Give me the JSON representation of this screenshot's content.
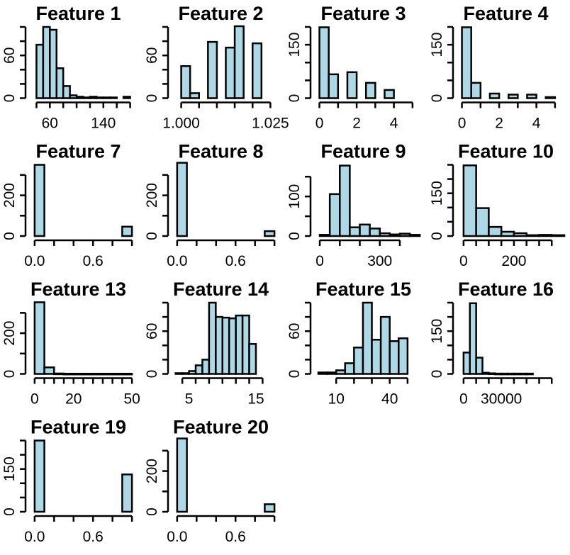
{
  "chart_data": [
    {
      "type": "bar",
      "title": "Feature 1",
      "x_ticks": [
        "60",
        "140"
      ],
      "x_tick_values": [
        60,
        140
      ],
      "y_ticks": [
        "0",
        "60"
      ],
      "y_tick_values": [
        0,
        60
      ],
      "xlim": [
        30,
        190
      ],
      "ylim": [
        0,
        100
      ],
      "x_tick_minor": [
        40,
        60,
        80,
        100,
        120,
        140,
        160,
        180
      ],
      "y_tick_minor": [
        0,
        20,
        40,
        60,
        80,
        100
      ],
      "bins": [
        [
          40,
          50,
          75
        ],
        [
          50,
          60,
          100
        ],
        [
          60,
          70,
          96
        ],
        [
          70,
          80,
          42
        ],
        [
          80,
          90,
          17
        ],
        [
          90,
          100,
          4
        ],
        [
          100,
          110,
          2
        ],
        [
          110,
          120,
          1
        ],
        [
          120,
          130,
          2
        ],
        [
          130,
          140,
          1
        ],
        [
          140,
          150,
          1
        ],
        [
          150,
          160,
          1
        ],
        [
          160,
          170,
          0
        ],
        [
          170,
          180,
          2
        ]
      ]
    },
    {
      "type": "bar",
      "title": "Feature 2",
      "x_ticks": [
        "1.000",
        "1.025"
      ],
      "x_tick_values": [
        1.0,
        1.025
      ],
      "y_ticks": [
        "0",
        "60"
      ],
      "y_tick_values": [
        0,
        60
      ],
      "xlim": [
        0.9975,
        1.0275
      ],
      "ylim": [
        0,
        100
      ],
      "x_tick_minor": [
        1.0,
        1.005,
        1.01,
        1.015,
        1.02,
        1.025
      ],
      "y_tick_minor": [
        0,
        20,
        40,
        60,
        80,
        100
      ],
      "bins": [
        [
          1.0,
          1.0025,
          45
        ],
        [
          1.0025,
          1.005,
          7
        ],
        [
          1.005,
          1.0075,
          0
        ],
        [
          1.0075,
          1.01,
          79
        ],
        [
          1.01,
          1.0125,
          0
        ],
        [
          1.0125,
          1.015,
          71
        ],
        [
          1.015,
          1.0175,
          101
        ],
        [
          1.0175,
          1.02,
          0
        ],
        [
          1.02,
          1.0225,
          77
        ]
      ]
    },
    {
      "type": "bar",
      "title": "Feature 3",
      "x_ticks": [
        "0",
        "2",
        "4"
      ],
      "x_tick_values": [
        0,
        2,
        4
      ],
      "y_ticks": [
        "0",
        "150"
      ],
      "y_tick_values": [
        0,
        150
      ],
      "xlim": [
        -0.25,
        5.5
      ],
      "ylim": [
        0,
        200
      ],
      "x_tick_minor": [
        0,
        1,
        2,
        3,
        4,
        5
      ],
      "y_tick_minor": [
        0,
        50,
        100,
        150,
        200
      ],
      "bins": [
        [
          0,
          0.5,
          199
        ],
        [
          0.5,
          1,
          67
        ],
        [
          1,
          1.5,
          0
        ],
        [
          1.5,
          2,
          73
        ],
        [
          2,
          2.5,
          0
        ],
        [
          2.5,
          3,
          43
        ],
        [
          3,
          3.5,
          0
        ],
        [
          3.5,
          4,
          23
        ]
      ]
    },
    {
      "type": "bar",
      "title": "Feature 4",
      "x_ticks": [
        "0",
        "2",
        "4"
      ],
      "x_tick_values": [
        0,
        2,
        4
      ],
      "y_ticks": [
        "0",
        "150"
      ],
      "y_tick_values": [
        0,
        150
      ],
      "xlim": [
        -0.25,
        5.5
      ],
      "ylim": [
        0,
        200
      ],
      "x_tick_minor": [
        0,
        1,
        2,
        3,
        4,
        5
      ],
      "y_tick_minor": [
        0,
        50,
        100,
        150,
        200
      ],
      "bins": [
        [
          0,
          0.5,
          199
        ],
        [
          0.5,
          1,
          43
        ],
        [
          1,
          1.5,
          0
        ],
        [
          1.5,
          2,
          13
        ],
        [
          2,
          2.5,
          0
        ],
        [
          2.5,
          3,
          10
        ],
        [
          3,
          3.5,
          0
        ],
        [
          3.5,
          4,
          10
        ],
        [
          4,
          4.5,
          0
        ],
        [
          4.5,
          5,
          3
        ]
      ]
    },
    {
      "type": "bar",
      "title": "Feature 7",
      "x_ticks": [
        "0.0",
        "0.6"
      ],
      "x_tick_values": [
        0.0,
        0.6
      ],
      "y_ticks": [
        "0",
        "200"
      ],
      "y_tick_values": [
        0,
        200
      ],
      "xlim": [
        -0.05,
        1.05
      ],
      "ylim": [
        0,
        350
      ],
      "x_tick_minor": [
        0.0,
        0.2,
        0.4,
        0.6,
        0.8,
        1.0
      ],
      "y_tick_minor": [
        0,
        100,
        200,
        300
      ],
      "bins": [
        [
          0.0,
          0.1,
          350
        ],
        [
          0.1,
          0.2,
          0
        ],
        [
          0.2,
          0.3,
          0
        ],
        [
          0.3,
          0.4,
          0
        ],
        [
          0.4,
          0.5,
          0
        ],
        [
          0.5,
          0.6,
          0
        ],
        [
          0.6,
          0.7,
          0
        ],
        [
          0.7,
          0.8,
          0
        ],
        [
          0.8,
          0.9,
          0
        ],
        [
          0.9,
          1.0,
          46
        ]
      ]
    },
    {
      "type": "bar",
      "title": "Feature 8",
      "x_ticks": [
        "0.0",
        "0.6"
      ],
      "x_tick_values": [
        0.0,
        0.6
      ],
      "y_ticks": [
        "0",
        "200"
      ],
      "y_tick_values": [
        0,
        200
      ],
      "xlim": [
        -0.05,
        1.05
      ],
      "ylim": [
        0,
        350
      ],
      "x_tick_minor": [
        0.0,
        0.2,
        0.4,
        0.6,
        0.8,
        1.0
      ],
      "y_tick_minor": [
        0,
        100,
        200,
        300
      ],
      "bins": [
        [
          0.0,
          0.1,
          360
        ],
        [
          0.1,
          0.2,
          0
        ],
        [
          0.2,
          0.3,
          0
        ],
        [
          0.3,
          0.4,
          0
        ],
        [
          0.4,
          0.5,
          0
        ],
        [
          0.5,
          0.6,
          0
        ],
        [
          0.6,
          0.7,
          0
        ],
        [
          0.7,
          0.8,
          0
        ],
        [
          0.8,
          0.9,
          0
        ],
        [
          0.9,
          1.0,
          24
        ]
      ]
    },
    {
      "type": "bar",
      "title": "Feature 9",
      "x_ticks": [
        "0",
        "300"
      ],
      "x_tick_values": [
        0,
        300
      ],
      "y_ticks": [
        "0",
        "100"
      ],
      "y_tick_values": [
        0,
        100
      ],
      "xlim": [
        -25,
        510
      ],
      "ylim": [
        0,
        180
      ],
      "x_tick_minor": [
        0,
        100,
        200,
        300,
        400
      ],
      "y_tick_minor": [
        0,
        50,
        100,
        150
      ],
      "bins": [
        [
          0,
          50,
          3
        ],
        [
          50,
          100,
          106
        ],
        [
          100,
          150,
          178
        ],
        [
          150,
          200,
          22
        ],
        [
          200,
          250,
          29
        ],
        [
          250,
          300,
          19
        ],
        [
          300,
          350,
          7
        ],
        [
          350,
          400,
          4
        ],
        [
          400,
          450,
          6
        ],
        [
          450,
          500,
          3
        ]
      ]
    },
    {
      "type": "bar",
      "title": "Feature 10",
      "x_ticks": [
        "0",
        "200"
      ],
      "x_tick_values": [
        0,
        200
      ],
      "y_ticks": [
        "0",
        "150"
      ],
      "y_tick_values": [
        0,
        150
      ],
      "xlim": [
        -25,
        400
      ],
      "ylim": [
        0,
        250
      ],
      "x_tick_minor": [
        0,
        50,
        100,
        150,
        200,
        250,
        300,
        350
      ],
      "y_tick_minor": [
        0,
        50,
        100,
        150,
        200,
        250
      ],
      "bins": [
        [
          0,
          50,
          248
        ],
        [
          50,
          100,
          98
        ],
        [
          100,
          150,
          32
        ],
        [
          150,
          200,
          15
        ],
        [
          200,
          250,
          10
        ],
        [
          250,
          300,
          3
        ],
        [
          300,
          350,
          4
        ],
        [
          350,
          400,
          3
        ]
      ]
    },
    {
      "type": "bar",
      "title": "Feature 13",
      "x_ticks": [
        "0",
        "20",
        "50"
      ],
      "x_tick_values": [
        0,
        20,
        50
      ],
      "y_ticks": [
        "0",
        "200"
      ],
      "y_tick_values": [
        0,
        200
      ],
      "xlim": [
        -2.5,
        52.5
      ],
      "ylim": [
        0,
        350
      ],
      "x_tick_minor": [
        0,
        5,
        10,
        15,
        20,
        25,
        30,
        35,
        40,
        45,
        50
      ],
      "y_tick_minor": [
        0,
        100,
        200,
        300
      ],
      "bins": [
        [
          0,
          5,
          352
        ],
        [
          5,
          10,
          32
        ],
        [
          10,
          15,
          2
        ],
        [
          15,
          20,
          1
        ],
        [
          20,
          25,
          1
        ],
        [
          25,
          30,
          1
        ],
        [
          30,
          35,
          1
        ],
        [
          35,
          40,
          1
        ],
        [
          40,
          45,
          1
        ],
        [
          45,
          50,
          1
        ]
      ]
    },
    {
      "type": "bar",
      "title": "Feature 14",
      "x_ticks": [
        "5",
        "15"
      ],
      "x_tick_values": [
        5,
        15
      ],
      "y_ticks": [
        "0",
        "60"
      ],
      "y_tick_values": [
        0,
        60
      ],
      "xlim": [
        2.5,
        18.5
      ],
      "ylim": [
        0,
        100
      ],
      "x_tick_minor": [
        4,
        6,
        8,
        10,
        12,
        14,
        16
      ],
      "y_tick_minor": [
        0,
        20,
        40,
        60,
        80,
        100
      ],
      "bins": [
        [
          3,
          4,
          1
        ],
        [
          4,
          5,
          1
        ],
        [
          5,
          6,
          4
        ],
        [
          6,
          7,
          12
        ],
        [
          7,
          8,
          20
        ],
        [
          8,
          9,
          100
        ],
        [
          9,
          10,
          80
        ],
        [
          10,
          11,
          79
        ],
        [
          11,
          12,
          78
        ],
        [
          12,
          13,
          82
        ],
        [
          13,
          14,
          82
        ],
        [
          14,
          15,
          42
        ]
      ]
    },
    {
      "type": "bar",
      "title": "Feature 15",
      "x_ticks": [
        "10",
        "40"
      ],
      "x_tick_values": [
        10,
        40
      ],
      "y_ticks": [
        "0",
        "60"
      ],
      "y_tick_values": [
        0,
        60
      ],
      "xlim": [
        -2,
        58
      ],
      "ylim": [
        0,
        100
      ],
      "x_tick_minor": [
        10,
        20,
        30,
        40,
        50
      ],
      "y_tick_minor": [
        0,
        20,
        40,
        60,
        80,
        100
      ],
      "bins": [
        [
          0,
          5,
          2
        ],
        [
          5,
          10,
          2
        ],
        [
          10,
          15,
          5
        ],
        [
          15,
          20,
          15
        ],
        [
          20,
          25,
          37
        ],
        [
          25,
          30,
          100
        ],
        [
          30,
          35,
          48
        ],
        [
          35,
          40,
          80
        ],
        [
          40,
          45,
          46
        ],
        [
          45,
          50,
          50
        ]
      ]
    },
    {
      "type": "bar",
      "title": "Feature 16",
      "x_ticks": [
        "0",
        "30000"
      ],
      "x_tick_values": [
        0,
        30000
      ],
      "y_ticks": [
        "0",
        "150"
      ],
      "y_tick_values": [
        0,
        150
      ],
      "xlim": [
        -5000,
        80000
      ],
      "ylim": [
        0,
        250
      ],
      "x_tick_minor": [
        0,
        10000,
        20000,
        30000,
        40000,
        50000,
        60000,
        70000
      ],
      "y_tick_minor": [
        0,
        50,
        100,
        150,
        200,
        250
      ],
      "bins": [
        [
          0,
          5000,
          75
        ],
        [
          5000,
          10000,
          248
        ],
        [
          10000,
          15000,
          57
        ],
        [
          15000,
          20000,
          4
        ],
        [
          20000,
          25000,
          2
        ],
        [
          25000,
          30000,
          1
        ],
        [
          30000,
          35000,
          1
        ],
        [
          35000,
          40000,
          1
        ],
        [
          40000,
          45000,
          1
        ],
        [
          45000,
          50000,
          1
        ],
        [
          50000,
          55000,
          1
        ]
      ]
    },
    {
      "type": "bar",
      "title": "Feature 19",
      "x_ticks": [
        "0.0",
        "0.6"
      ],
      "x_tick_values": [
        0.0,
        0.6
      ],
      "y_ticks": [
        "0",
        "150"
      ],
      "y_tick_values": [
        0,
        150
      ],
      "xlim": [
        -0.05,
        1.05
      ],
      "ylim": [
        0,
        250
      ],
      "x_tick_minor": [
        0.0,
        0.2,
        0.4,
        0.6,
        0.8,
        1.0
      ],
      "y_tick_minor": [
        0,
        50,
        100,
        150,
        200,
        250
      ],
      "bins": [
        [
          0.0,
          0.1,
          250
        ],
        [
          0.1,
          0.2,
          0
        ],
        [
          0.2,
          0.3,
          0
        ],
        [
          0.3,
          0.4,
          0
        ],
        [
          0.4,
          0.5,
          0
        ],
        [
          0.5,
          0.6,
          0
        ],
        [
          0.6,
          0.7,
          0
        ],
        [
          0.7,
          0.8,
          0
        ],
        [
          0.8,
          0.9,
          0
        ],
        [
          0.9,
          1.0,
          131
        ]
      ]
    },
    {
      "type": "bar",
      "title": "Feature 20",
      "x_ticks": [
        "0.0",
        "0.6"
      ],
      "x_tick_values": [
        0.0,
        0.6
      ],
      "y_ticks": [
        "0",
        "200"
      ],
      "y_tick_values": [
        0,
        200
      ],
      "xlim": [
        -0.05,
        1.05
      ],
      "ylim": [
        0,
        350
      ],
      "x_tick_minor": [
        0.0,
        0.2,
        0.4,
        0.6,
        0.8,
        1.0
      ],
      "y_tick_minor": [
        0,
        100,
        200,
        300
      ],
      "bins": [
        [
          0.0,
          0.1,
          360
        ],
        [
          0.1,
          0.2,
          0
        ],
        [
          0.2,
          0.3,
          0
        ],
        [
          0.3,
          0.4,
          0
        ],
        [
          0.4,
          0.5,
          0
        ],
        [
          0.5,
          0.6,
          0
        ],
        [
          0.6,
          0.7,
          0
        ],
        [
          0.7,
          0.8,
          0
        ],
        [
          0.8,
          0.9,
          0
        ],
        [
          0.9,
          1.0,
          37
        ]
      ]
    }
  ],
  "colors": {
    "bar_fill": "#add8e6",
    "bar_stroke": "#000000",
    "background": "#ffffff"
  }
}
